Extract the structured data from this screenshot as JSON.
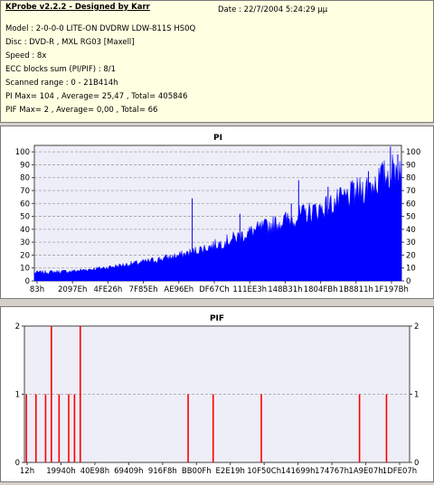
{
  "info": {
    "title": "KProbe v2.2.2 - Designed by Karr",
    "date": "Date : 22/7/2004 5:24:29 μμ",
    "lines": [
      "Model : 2-0-0-0 LITE-ON DVDRW LDW-811S   HS0Q",
      "Disc : DVD-R , MXL RG03 [Maxell]",
      "Speed : 8x",
      "ECC blocks sum (PI/PIF) : 8/1",
      "Scanned range : 0 - 21B414h",
      "PI Max= 104 , Average= 25,47 , Total= 405846",
      "PIF Max= 2 , Average= 0,00 , Total= 66"
    ]
  },
  "colors": {
    "series": "#0000ff",
    "pif_bar": "#ff0000",
    "plot_bg": "#eeeef8",
    "grid": "#a0a0a0"
  },
  "chart_data": [
    {
      "type": "area",
      "title": "PI",
      "ylim": [
        0,
        105
      ],
      "yticks": [
        0,
        10,
        20,
        30,
        40,
        50,
        60,
        70,
        80,
        90,
        100
      ],
      "xticks": [
        "83h",
        "2097Eh",
        "4FE26h",
        "7F85Eh",
        "AE96Eh",
        "DF67Ch",
        "111EE3h",
        "148B31h",
        "1804FBh",
        "1B8811h",
        "1F197Bh"
      ],
      "grid": true,
      "profile": [
        {
          "x": 0.0,
          "y": 6
        },
        {
          "x": 0.1,
          "y": 7
        },
        {
          "x": 0.2,
          "y": 10
        },
        {
          "x": 0.3,
          "y": 14
        },
        {
          "x": 0.4,
          "y": 19
        },
        {
          "x": 0.5,
          "y": 27
        },
        {
          "x": 0.6,
          "y": 37
        },
        {
          "x": 0.7,
          "y": 46
        },
        {
          "x": 0.8,
          "y": 55
        },
        {
          "x": 0.9,
          "y": 68
        },
        {
          "x": 1.0,
          "y": 85
        }
      ],
      "spikes": [
        {
          "x": 0.43,
          "y": 64
        },
        {
          "x": 0.56,
          "y": 52
        },
        {
          "x": 0.7,
          "y": 60
        },
        {
          "x": 0.72,
          "y": 78
        },
        {
          "x": 0.8,
          "y": 73
        },
        {
          "x": 0.87,
          "y": 76
        },
        {
          "x": 0.91,
          "y": 85
        },
        {
          "x": 0.95,
          "y": 90
        },
        {
          "x": 0.97,
          "y": 104
        },
        {
          "x": 0.99,
          "y": 98
        }
      ]
    },
    {
      "type": "bar",
      "title": "PIF",
      "ylim": [
        0,
        2
      ],
      "yticks": [
        0,
        1,
        2
      ],
      "xticks": [
        "12h",
        "19940h",
        "40E98h",
        "69409h",
        "916F8h",
        "BB00Fh",
        "E2E19h",
        "10F50Ch",
        "141699h",
        "174767h",
        "1A9E07h",
        "1DFE07h"
      ],
      "grid": true,
      "bars": [
        {
          "x": 0.005,
          "y": 1
        },
        {
          "x": 0.03,
          "y": 1
        },
        {
          "x": 0.055,
          "y": 1
        },
        {
          "x": 0.07,
          "y": 2
        },
        {
          "x": 0.09,
          "y": 1
        },
        {
          "x": 0.115,
          "y": 1
        },
        {
          "x": 0.13,
          "y": 1
        },
        {
          "x": 0.145,
          "y": 2
        },
        {
          "x": 0.425,
          "y": 1
        },
        {
          "x": 0.49,
          "y": 1
        },
        {
          "x": 0.615,
          "y": 1
        },
        {
          "x": 0.87,
          "y": 1
        },
        {
          "x": 0.94,
          "y": 1
        }
      ]
    }
  ]
}
